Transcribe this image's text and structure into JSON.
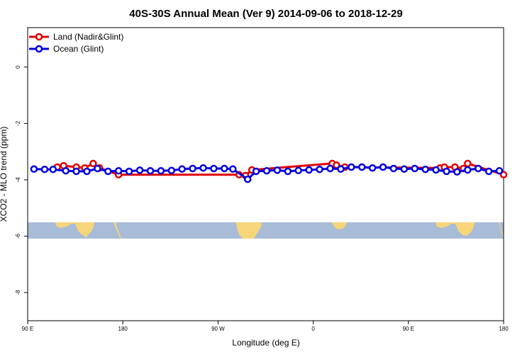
{
  "chart_data": {
    "type": "line",
    "title": "40S-30S Annual Mean (Ver 9)   2014-09-06 to 2018-12-29",
    "xlabel": "Longitude (deg E)",
    "ylabel": "XCO2 - MLO trend (ppm)",
    "xlim": [
      90,
      315
    ],
    "ylim": [
      -9.0,
      1.4
    ],
    "x_ticks": [
      {
        "value": 90,
        "label": "90 E"
      },
      {
        "value": 135,
        "label": "180"
      },
      {
        "value": 180,
        "label": "90 W"
      },
      {
        "value": 225,
        "label": "0"
      },
      {
        "value": 270,
        "label": "90 E"
      },
      {
        "value": 315,
        "label": "180"
      }
    ],
    "y_ticks": [
      {
        "value": 0,
        "label": "0"
      },
      {
        "value": -2,
        "label": "-2"
      },
      {
        "value": -4,
        "label": "-4"
      },
      {
        "value": -6,
        "label": "-6"
      },
      {
        "value": -8,
        "label": "-8"
      }
    ],
    "legend": {
      "position": "top-left"
    },
    "series": [
      {
        "name": "Land (Nadir&Glint)",
        "color": "#e00000",
        "points": [
          [
            104,
            -3.55
          ],
          [
            107,
            -3.5
          ],
          [
            113,
            -3.55
          ],
          [
            117,
            -3.58
          ],
          [
            121,
            -3.42
          ],
          [
            124,
            -3.58
          ],
          [
            133,
            -3.82
          ],
          [
            190,
            -3.82
          ],
          [
            193,
            -3.85
          ],
          [
            196,
            -3.65
          ],
          [
            234,
            -3.42
          ],
          [
            236,
            -3.48
          ],
          [
            240,
            -3.55
          ],
          [
            285,
            -3.58
          ],
          [
            287,
            -3.55
          ],
          [
            292,
            -3.55
          ],
          [
            296,
            -3.6
          ],
          [
            298,
            -3.42
          ],
          [
            315,
            -3.82
          ]
        ]
      },
      {
        "name": "Ocean (Glint)",
        "color": "#0000e0",
        "points": [
          [
            93,
            -3.62
          ],
          [
            98,
            -3.63
          ],
          [
            102,
            -3.63
          ],
          [
            108,
            -3.68
          ],
          [
            113,
            -3.7
          ],
          [
            118,
            -3.7
          ],
          [
            123,
            -3.6
          ],
          [
            128,
            -3.7
          ],
          [
            133,
            -3.68
          ],
          [
            138,
            -3.7
          ],
          [
            143,
            -3.66
          ],
          [
            148,
            -3.68
          ],
          [
            153,
            -3.68
          ],
          [
            158,
            -3.67
          ],
          [
            163,
            -3.62
          ],
          [
            168,
            -3.6
          ],
          [
            173,
            -3.58
          ],
          [
            178,
            -3.6
          ],
          [
            183,
            -3.6
          ],
          [
            187,
            -3.62
          ],
          [
            194,
            -3.98
          ],
          [
            198,
            -3.7
          ],
          [
            203,
            -3.68
          ],
          [
            208,
            -3.66
          ],
          [
            213,
            -3.7
          ],
          [
            218,
            -3.67
          ],
          [
            223,
            -3.65
          ],
          [
            228,
            -3.63
          ],
          [
            233,
            -3.6
          ],
          [
            238,
            -3.62
          ],
          [
            243,
            -3.55
          ],
          [
            248,
            -3.55
          ],
          [
            253,
            -3.58
          ],
          [
            258,
            -3.55
          ],
          [
            263,
            -3.6
          ],
          [
            268,
            -3.62
          ],
          [
            273,
            -3.6
          ],
          [
            278,
            -3.63
          ],
          [
            283,
            -3.65
          ],
          [
            288,
            -3.7
          ],
          [
            293,
            -3.72
          ],
          [
            298,
            -3.65
          ],
          [
            303,
            -3.6
          ],
          [
            308,
            -3.7
          ],
          [
            313,
            -3.68
          ]
        ]
      }
    ]
  },
  "map_strip_colors": {
    "ocean": "#a8bcd8",
    "land": "#f7d57a"
  }
}
